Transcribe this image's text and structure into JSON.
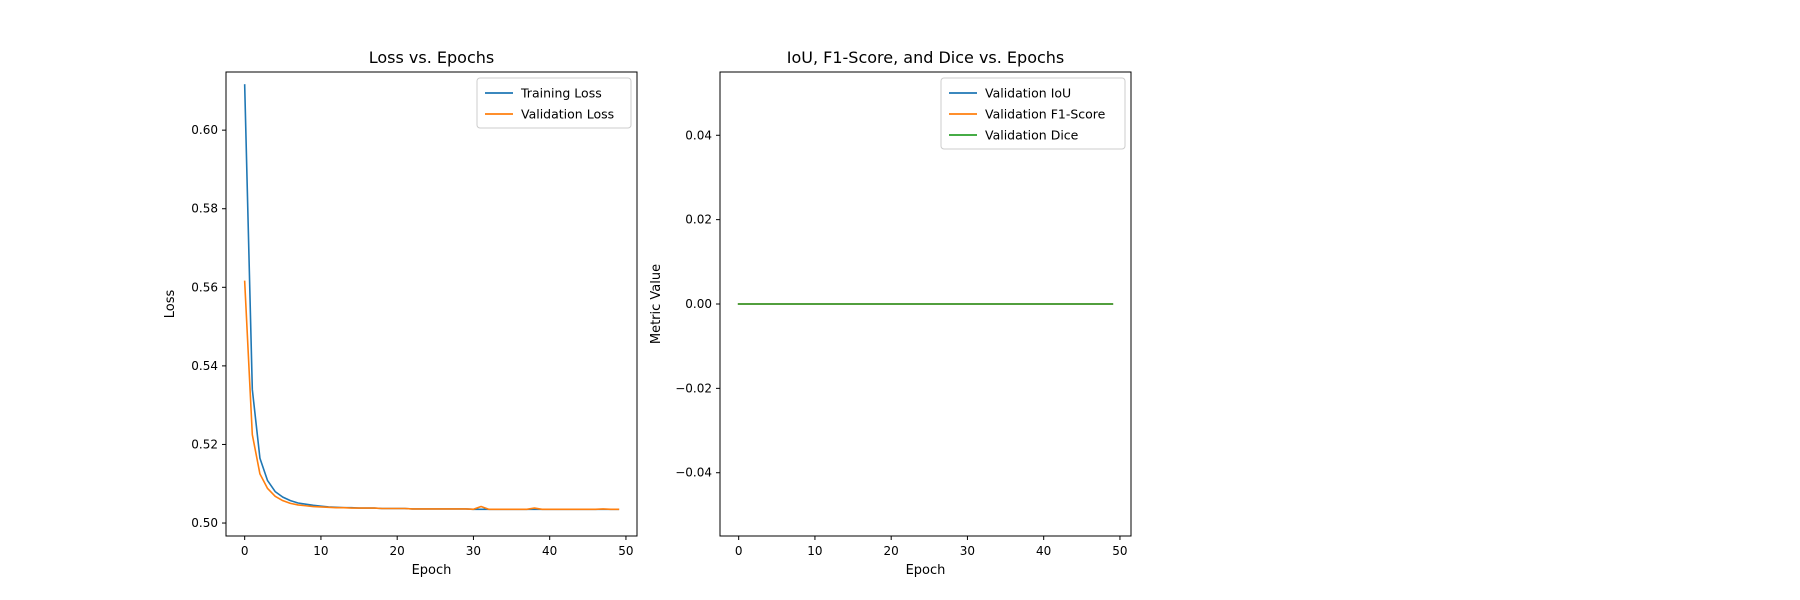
{
  "chart_data": [
    {
      "type": "line",
      "title": "Loss vs. Epochs",
      "xlabel": "Epoch",
      "ylabel": "Loss",
      "xlim": [
        -2.45,
        51.45
      ],
      "ylim": [
        0.4967,
        0.6148
      ],
      "xticks": [
        0,
        10,
        20,
        30,
        40,
        50
      ],
      "yticks": [
        0.5,
        0.52,
        0.54,
        0.56,
        0.58,
        0.6
      ],
      "ytick_decimals": 2,
      "legend": "top-right",
      "grid": false,
      "series": [
        {
          "name": "Training Loss",
          "color": "#1f77b4",
          "x": [
            0,
            1,
            2,
            3,
            4,
            5,
            6,
            7,
            8,
            9,
            10,
            11,
            12,
            13,
            14,
            15,
            16,
            17,
            18,
            19,
            20,
            21,
            22,
            23,
            24,
            25,
            26,
            27,
            28,
            29,
            30,
            31,
            32,
            33,
            34,
            35,
            36,
            37,
            38,
            39,
            40,
            41,
            42,
            43,
            44,
            45,
            46,
            47,
            48,
            49
          ],
          "values": [
            0.6115,
            0.534,
            0.5165,
            0.5108,
            0.508,
            0.5066,
            0.5057,
            0.5051,
            0.5048,
            0.5045,
            0.5043,
            0.5041,
            0.504,
            0.5039,
            0.5039,
            0.5038,
            0.5038,
            0.5038,
            0.5037,
            0.5037,
            0.5037,
            0.5037,
            0.5036,
            0.5036,
            0.5036,
            0.5036,
            0.5036,
            0.5036,
            0.5036,
            0.5036,
            0.5035,
            0.5035,
            0.5035,
            0.5035,
            0.5035,
            0.5035,
            0.5035,
            0.5035,
            0.5035,
            0.5035,
            0.5035,
            0.5035,
            0.5035,
            0.5035,
            0.5035,
            0.5035,
            0.5035,
            0.5035,
            0.5035,
            0.5035
          ]
        },
        {
          "name": "Validation Loss",
          "color": "#ff7f0e",
          "x": [
            0,
            1,
            2,
            3,
            4,
            5,
            6,
            7,
            8,
            9,
            10,
            11,
            12,
            13,
            14,
            15,
            16,
            17,
            18,
            19,
            20,
            21,
            22,
            23,
            24,
            25,
            26,
            27,
            28,
            29,
            30,
            31,
            32,
            33,
            34,
            35,
            36,
            37,
            38,
            39,
            40,
            41,
            42,
            43,
            44,
            45,
            46,
            47,
            48,
            49
          ],
          "values": [
            0.5615,
            0.5225,
            0.5125,
            0.5088,
            0.5068,
            0.5057,
            0.505,
            0.5046,
            0.5044,
            0.5042,
            0.5041,
            0.504,
            0.5039,
            0.5039,
            0.5038,
            0.5038,
            0.5038,
            0.5038,
            0.5037,
            0.5037,
            0.5037,
            0.5037,
            0.5036,
            0.5036,
            0.5036,
            0.5036,
            0.5036,
            0.5036,
            0.5036,
            0.5036,
            0.5035,
            0.5042,
            0.5035,
            0.5035,
            0.5035,
            0.5035,
            0.5035,
            0.5035,
            0.5038,
            0.5035,
            0.5035,
            0.5035,
            0.5035,
            0.5035,
            0.5035,
            0.5035,
            0.5035,
            0.5036,
            0.5035,
            0.5035
          ]
        }
      ]
    },
    {
      "type": "line",
      "title": "IoU, F1-Score, and Dice vs. Epochs",
      "xlabel": "Epoch",
      "ylabel": "Metric Value",
      "xlim": [
        -2.45,
        51.45
      ],
      "ylim": [
        -0.055,
        0.055
      ],
      "xticks": [
        0,
        10,
        20,
        30,
        40,
        50
      ],
      "yticks": [
        -0.04,
        -0.02,
        0.0,
        0.02,
        0.04
      ],
      "ytick_decimals": 2,
      "legend": "top-right",
      "grid": false,
      "series": [
        {
          "name": "Validation IoU",
          "color": "#1f77b4",
          "x": [
            0,
            1,
            2,
            3,
            4,
            5,
            6,
            7,
            8,
            9,
            10,
            11,
            12,
            13,
            14,
            15,
            16,
            17,
            18,
            19,
            20,
            21,
            22,
            23,
            24,
            25,
            26,
            27,
            28,
            29,
            30,
            31,
            32,
            33,
            34,
            35,
            36,
            37,
            38,
            39,
            40,
            41,
            42,
            43,
            44,
            45,
            46,
            47,
            48,
            49
          ],
          "values": [
            0,
            0,
            0,
            0,
            0,
            0,
            0,
            0,
            0,
            0,
            0,
            0,
            0,
            0,
            0,
            0,
            0,
            0,
            0,
            0,
            0,
            0,
            0,
            0,
            0,
            0,
            0,
            0,
            0,
            0,
            0,
            0,
            0,
            0,
            0,
            0,
            0,
            0,
            0,
            0,
            0,
            0,
            0,
            0,
            0,
            0,
            0,
            0,
            0,
            0
          ]
        },
        {
          "name": "Validation F1-Score",
          "color": "#ff7f0e",
          "x": [
            0,
            1,
            2,
            3,
            4,
            5,
            6,
            7,
            8,
            9,
            10,
            11,
            12,
            13,
            14,
            15,
            16,
            17,
            18,
            19,
            20,
            21,
            22,
            23,
            24,
            25,
            26,
            27,
            28,
            29,
            30,
            31,
            32,
            33,
            34,
            35,
            36,
            37,
            38,
            39,
            40,
            41,
            42,
            43,
            44,
            45,
            46,
            47,
            48,
            49
          ],
          "values": [
            0,
            0,
            0,
            0,
            0,
            0,
            0,
            0,
            0,
            0,
            0,
            0,
            0,
            0,
            0,
            0,
            0,
            0,
            0,
            0,
            0,
            0,
            0,
            0,
            0,
            0,
            0,
            0,
            0,
            0,
            0,
            0,
            0,
            0,
            0,
            0,
            0,
            0,
            0,
            0,
            0,
            0,
            0,
            0,
            0,
            0,
            0,
            0,
            0,
            0
          ]
        },
        {
          "name": "Validation Dice",
          "color": "#2ca02c",
          "x": [
            0,
            1,
            2,
            3,
            4,
            5,
            6,
            7,
            8,
            9,
            10,
            11,
            12,
            13,
            14,
            15,
            16,
            17,
            18,
            19,
            20,
            21,
            22,
            23,
            24,
            25,
            26,
            27,
            28,
            29,
            30,
            31,
            32,
            33,
            34,
            35,
            36,
            37,
            38,
            39,
            40,
            41,
            42,
            43,
            44,
            45,
            46,
            47,
            48,
            49
          ],
          "values": [
            0,
            0,
            0,
            0,
            0,
            0,
            0,
            0,
            0,
            0,
            0,
            0,
            0,
            0,
            0,
            0,
            0,
            0,
            0,
            0,
            0,
            0,
            0,
            0,
            0,
            0,
            0,
            0,
            0,
            0,
            0,
            0,
            0,
            0,
            0,
            0,
            0,
            0,
            0,
            0,
            0,
            0,
            0,
            0,
            0,
            0,
            0,
            0,
            0,
            0
          ]
        }
      ]
    }
  ]
}
